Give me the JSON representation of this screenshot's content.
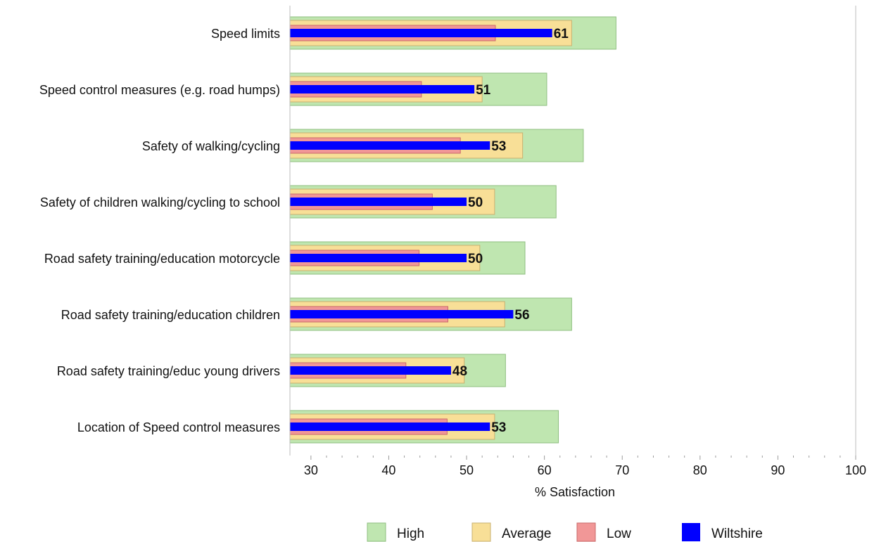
{
  "chart_data": {
    "type": "bar",
    "orientation": "horizontal",
    "style": "bullet",
    "categories": [
      "Speed limits",
      "Speed control measures (e.g. road humps)",
      "Safety of walking/cycling",
      "Safety of children walking/cycling to school",
      "Road safety training/education motorcycle",
      "Road safety training/education  children",
      "Road safety training/educ  young drivers",
      "Location of Speed control measures"
    ],
    "series": [
      {
        "name": "High",
        "color": "#bfe6b0",
        "values": [
          69.2,
          60.3,
          65.0,
          61.5,
          57.5,
          63.5,
          55.0,
          61.8
        ]
      },
      {
        "name": "Average",
        "color": "#f8df97",
        "values": [
          63.5,
          52.0,
          57.2,
          53.6,
          51.7,
          54.9,
          49.7,
          53.6
        ]
      },
      {
        "name": "Low",
        "color": "#f19797",
        "values": [
          53.7,
          44.2,
          49.2,
          45.6,
          43.9,
          47.6,
          42.2,
          47.5
        ]
      },
      {
        "name": "Wiltshire",
        "color": "#0000ff",
        "values": [
          61,
          51,
          53,
          50,
          50,
          56,
          48,
          53
        ]
      }
    ],
    "data_labels": [
      "61",
      "51",
      "53",
      "50",
      "50",
      "56",
      "48",
      "53"
    ],
    "xlabel": "% Satisfaction",
    "ylabel": "",
    "xlim": [
      27.3,
      100
    ],
    "xticks": [
      "30",
      "40",
      "50",
      "60",
      "70",
      "80",
      "90",
      "100"
    ],
    "grid": false,
    "legend_position": "bottom"
  }
}
